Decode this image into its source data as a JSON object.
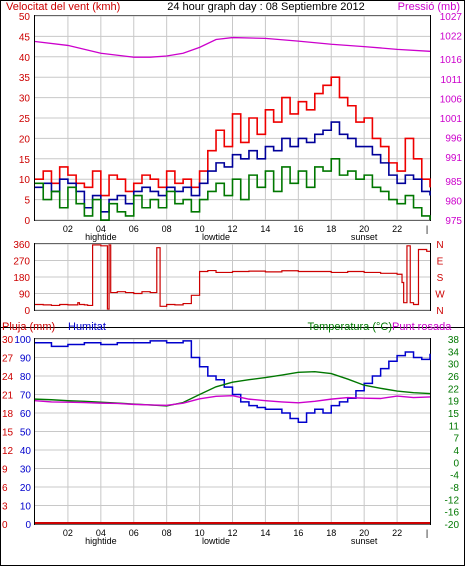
{
  "header": {
    "left": "Velocitat del vent (kmh)",
    "center": "24 hour graph day : 08 Septiembre 2012",
    "right": "Pressió (mb)"
  },
  "x_ticks": [
    "02",
    "04",
    "06",
    "08",
    "10",
    "12",
    "14",
    "16",
    "18",
    "20",
    "22"
  ],
  "x_events": [
    {
      "label": "hightide",
      "x": 4
    },
    {
      "label": "lowtide",
      "x": 11
    },
    {
      "label": "sunset",
      "x": 20
    }
  ],
  "colors": {
    "wind_gust": "#ee0000",
    "wind_avg": "#000099",
    "wind_min": "#007700",
    "pressure": "#cc00cc",
    "direction": "#cc0000",
    "rain": "#cc0000",
    "humidity": "#0000cc",
    "temperature": "#007700",
    "dewpoint": "#cc00cc"
  },
  "labels": {
    "pluja": "Pluja (mm)",
    "humitat": "Humitat",
    "temperatura": "Temperatura (°C)",
    "punt_rosada": "Punt rosada"
  },
  "chart_data": [
    {
      "type": "line",
      "title": "24 hour graph day : 08 Septiembre 2012",
      "ylabel": "Velocitat del vent (kmh)",
      "y2label": "Pressió (mb)",
      "xlim": [
        0,
        24
      ],
      "ylim": [
        0,
        50
      ],
      "y2lim": [
        975,
        1027
      ],
      "y_ticks": [
        0,
        5,
        10,
        15,
        20,
        25,
        30,
        35,
        40,
        45,
        50
      ],
      "y2_ticks": [
        975,
        980,
        985,
        991,
        996,
        1001,
        1006,
        1011,
        1016,
        1022,
        1027
      ],
      "grid": true,
      "series": [
        {
          "name": "wind_gust",
          "x": [
            0,
            0.5,
            1,
            1.5,
            2,
            2.5,
            3,
            3.5,
            4,
            4.5,
            5,
            5.5,
            6,
            6.5,
            7,
            7.5,
            8,
            8.5,
            9,
            9.5,
            10,
            10.5,
            11,
            11.5,
            12,
            12.5,
            13,
            13.5,
            14,
            14.5,
            15,
            15.5,
            16,
            16.5,
            17,
            17.5,
            18,
            18.5,
            19,
            19.5,
            20,
            20.5,
            21,
            21.5,
            22,
            22.5,
            23,
            23.5,
            24
          ],
          "values": [
            10,
            12,
            9,
            13,
            11,
            9,
            8,
            12,
            6,
            11,
            10,
            7,
            9,
            11,
            10,
            8,
            12,
            9,
            10,
            8,
            12,
            17,
            22,
            18,
            26,
            19,
            25,
            21,
            27,
            24,
            30,
            26,
            29,
            27,
            31,
            33,
            35,
            30,
            28,
            24,
            25,
            20,
            18,
            14,
            12,
            20,
            15,
            10,
            8
          ]
        },
        {
          "name": "wind_avg",
          "x": [
            0,
            0.5,
            1,
            1.5,
            2,
            2.5,
            3,
            3.5,
            4,
            4.5,
            5,
            5.5,
            6,
            6.5,
            7,
            7.5,
            8,
            8.5,
            9,
            9.5,
            10,
            10.5,
            11,
            11.5,
            12,
            12.5,
            13,
            13.5,
            14,
            14.5,
            15,
            15.5,
            16,
            16.5,
            17,
            17.5,
            18,
            18.5,
            19,
            19.5,
            20,
            20.5,
            21,
            21.5,
            22,
            22.5,
            23,
            23.5,
            24
          ],
          "values": [
            8,
            9,
            7,
            10,
            9,
            7,
            3,
            6,
            2,
            5,
            6,
            4,
            7,
            8,
            7,
            6,
            8,
            7,
            8,
            6,
            9,
            12,
            14,
            13,
            16,
            15,
            17,
            15,
            18,
            17,
            20,
            18,
            20,
            19,
            21,
            22,
            24,
            21,
            20,
            18,
            18,
            16,
            14,
            11,
            9,
            11,
            10,
            7,
            6
          ]
        },
        {
          "name": "wind_min",
          "x": [
            0,
            0.5,
            1,
            1.5,
            2,
            2.5,
            3,
            3.5,
            4,
            4.5,
            5,
            5.5,
            6,
            6.5,
            7,
            7.5,
            8,
            8.5,
            9,
            9.5,
            10,
            10.5,
            11,
            11.5,
            12,
            12.5,
            13,
            13.5,
            14,
            14.5,
            15,
            15.5,
            16,
            16.5,
            17,
            17.5,
            18,
            18.5,
            19,
            19.5,
            20,
            20.5,
            21,
            21.5,
            22,
            22.5,
            23,
            23.5,
            24
          ],
          "values": [
            9,
            5,
            7,
            3,
            8,
            4,
            1,
            5,
            0,
            4,
            2,
            1,
            6,
            3,
            5,
            3,
            7,
            4,
            5,
            2,
            5,
            7,
            9,
            6,
            10,
            5,
            11,
            8,
            12,
            7,
            13,
            9,
            12,
            8,
            13,
            12,
            15,
            11,
            12,
            10,
            11,
            8,
            7,
            5,
            4,
            6,
            3,
            1,
            0
          ]
        },
        {
          "name": "pressure",
          "x": [
            0,
            2,
            4,
            6,
            7,
            8,
            9,
            10,
            11,
            12,
            14,
            16,
            18,
            20,
            22,
            24
          ],
          "values": [
            1020.5,
            1019.5,
            1017.5,
            1016.5,
            1016.5,
            1016.8,
            1017.5,
            1019,
            1021,
            1021.5,
            1021.3,
            1020.6,
            1019.8,
            1019.2,
            1018.5,
            1018
          ]
        }
      ]
    },
    {
      "type": "line",
      "ylabel": "Wind direction",
      "xlim": [
        0,
        24
      ],
      "ylim": [
        0,
        360
      ],
      "y_ticks": [
        0,
        90,
        180,
        270,
        360
      ],
      "y2_tick_labels": [
        "N",
        "W",
        "S",
        "E",
        "N"
      ],
      "series": [
        {
          "name": "direction",
          "x": [
            0,
            0.5,
            1,
            1.5,
            2,
            2.5,
            2.6,
            2.7,
            2.8,
            3,
            3.2,
            3.5,
            3.6,
            4,
            4.4,
            4.5,
            4.6,
            5,
            5.5,
            6,
            6.5,
            7,
            7.4,
            7.6,
            8,
            8.5,
            9,
            9.5,
            10,
            10.5,
            11,
            12,
            13,
            14,
            15,
            16,
            17,
            18,
            19,
            20,
            21,
            22,
            22.3,
            22.4,
            22.6,
            22.8,
            23,
            23.2,
            23.3,
            23.8,
            24
          ],
          "values": [
            30,
            28,
            25,
            30,
            28,
            28,
            40,
            30,
            30,
            28,
            25,
            355,
            355,
            350,
            5,
            355,
            95,
            100,
            95,
            90,
            100,
            95,
            340,
            20,
            30,
            28,
            35,
            80,
            210,
            215,
            205,
            210,
            212,
            208,
            214,
            210,
            210,
            205,
            210,
            205,
            200,
            195,
            150,
            40,
            350,
            40,
            30,
            30,
            330,
            320,
            320
          ]
        }
      ]
    },
    {
      "type": "line",
      "ylabel": "Pluja (mm)",
      "y2label": "Temperatura (°C)",
      "xlim": [
        0,
        24
      ],
      "ylim": [
        0,
        100
      ],
      "rain_ticks": [
        0,
        3,
        6,
        9,
        12,
        15,
        18,
        21,
        24,
        27,
        30
      ],
      "humidity_ticks": [
        0,
        10,
        20,
        30,
        40,
        50,
        60,
        70,
        80,
        90,
        100
      ],
      "temp_ticks": [
        -20,
        -16,
        -12,
        -8,
        -4,
        0,
        4,
        8,
        12,
        16,
        20,
        24,
        28,
        32,
        36,
        40
      ],
      "temp_tick_labels": [
        "-20",
        "-16",
        "-12",
        "-8",
        "-4",
        "0",
        "4",
        "7",
        "11",
        "15",
        "19",
        "22",
        "26",
        "30",
        "34",
        "38"
      ],
      "series": [
        {
          "name": "rain",
          "unit": "mm",
          "x": [
            0,
            24
          ],
          "values": [
            0,
            0
          ]
        },
        {
          "name": "humidity",
          "unit": "%",
          "x": [
            0,
            1,
            2,
            3,
            4,
            5,
            6,
            7,
            8,
            9,
            9.5,
            10,
            10.5,
            11,
            11.5,
            12,
            12.5,
            13,
            13.5,
            14,
            14.5,
            15,
            15.5,
            16,
            16.5,
            17,
            17.5,
            18,
            18.5,
            19,
            19.5,
            20,
            20.5,
            21,
            21.5,
            22,
            22.5,
            23,
            23.5,
            24
          ],
          "values": [
            98,
            96,
            97,
            98,
            97,
            98,
            98,
            99,
            98,
            99,
            90,
            85,
            80,
            78,
            74,
            70,
            66,
            64,
            63,
            62,
            62,
            60,
            57,
            55,
            60,
            62,
            60,
            64,
            66,
            68,
            72,
            76,
            80,
            84,
            88,
            91,
            93,
            90,
            89,
            92
          ]
        },
        {
          "name": "temperature",
          "unit": "°C",
          "x": [
            0,
            1,
            2,
            3,
            4,
            5,
            6,
            7,
            8,
            9,
            10,
            11,
            12,
            13,
            14,
            15,
            16,
            17,
            18,
            19,
            20,
            21,
            22,
            23,
            24
          ],
          "values": [
            20.5,
            20.3,
            20,
            19.8,
            19.5,
            19.2,
            18.9,
            18.6,
            18.3,
            19.4,
            22,
            24.5,
            26,
            26.8,
            27.5,
            28.3,
            29.2,
            29.4,
            28.8,
            27,
            25,
            24,
            23.1,
            22.6,
            22.3
          ]
        },
        {
          "name": "dewpoint",
          "unit": "°C",
          "x": [
            0,
            1,
            2,
            3,
            4,
            5,
            6,
            7,
            8,
            9,
            10,
            11,
            12,
            13,
            14,
            15,
            16,
            17,
            18,
            19,
            20,
            21,
            22,
            23,
            24
          ],
          "values": [
            20,
            19.6,
            19.5,
            19.4,
            19.2,
            19.1,
            18.8,
            18.6,
            18.5,
            19.2,
            20.6,
            21.4,
            21.6,
            20.5,
            20,
            19.6,
            19.3,
            19.8,
            20.5,
            21,
            20.8,
            20.7,
            21.5,
            21,
            21.2
          ]
        }
      ]
    }
  ]
}
